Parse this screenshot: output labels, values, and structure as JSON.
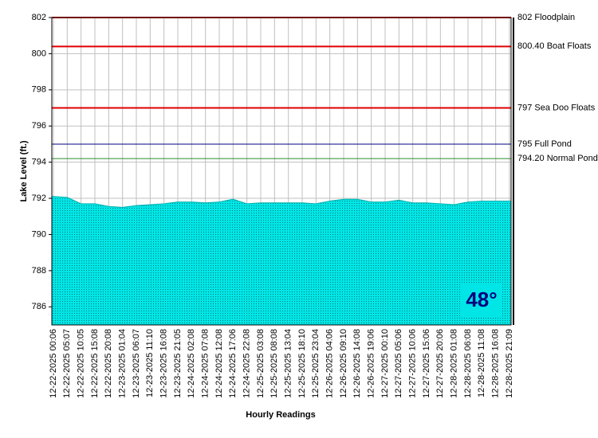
{
  "chart_data": {
    "type": "area",
    "y_label": "Lake Level (ft.)",
    "x_label": "Hourly Readings",
    "categories": [
      "12-22-2025 00:06",
      "12-22-2025 05:07",
      "12-22-2025 10:05",
      "12-22-2025 15:08",
      "12-22-2025 20:08",
      "12-23-2025 01:04",
      "12-23-2025 06:07",
      "12-23-2025 11:10",
      "12-23-2025 16:08",
      "12-23-2025 21:05",
      "12-24-2025 02:08",
      "12-24-2025 07:08",
      "12-24-2025 12:08",
      "12-24-2025 17:06",
      "12-24-2025 22:08",
      "12-25-2025 03:08",
      "12-25-2025 08:08",
      "12-25-2025 13:04",
      "12-25-2025 18:10",
      "12-25-2025 23:04",
      "12-26-2025 04:06",
      "12-26-2025 09:10",
      "12-26-2025 14:08",
      "12-26-2025 19:06",
      "12-27-2025 00:10",
      "12-27-2025 05:06",
      "12-27-2025 10:06",
      "12-27-2025 15:06",
      "12-27-2025 20:06",
      "12-28-2025 01:08",
      "12-28-2025 06:08",
      "12-28-2025 11:08",
      "12-28-2025 16:08",
      "12-28-2025 21:09"
    ],
    "values": [
      792.1,
      792.05,
      791.7,
      791.7,
      791.55,
      791.5,
      791.6,
      791.65,
      791.7,
      791.8,
      791.8,
      791.75,
      791.8,
      791.95,
      791.7,
      791.75,
      791.75,
      791.75,
      791.75,
      791.7,
      791.85,
      791.95,
      791.95,
      791.8,
      791.8,
      791.9,
      791.75,
      791.75,
      791.7,
      791.65,
      791.8,
      791.85,
      791.85,
      791.85
    ],
    "color": "#00e6e6",
    "ylim": [
      785,
      802
    ],
    "yticks": [
      786,
      788,
      790,
      792,
      794,
      796,
      798,
      800,
      802
    ],
    "grid": true,
    "reference_lines": [
      {
        "value": 802,
        "label": "802 Floodplain",
        "color": "#e00000"
      },
      {
        "value": 800.4,
        "label": "800.40 Boat Floats",
        "color": "#e00000"
      },
      {
        "value": 797,
        "label": "797 Sea Doo Floats",
        "color": "#e00000"
      },
      {
        "value": 795,
        "label": "795 Full Pond",
        "color": "#000080"
      },
      {
        "value": 794.2,
        "label": "794.20 Normal Pond",
        "color": "#2e8b2e"
      }
    ],
    "badge": "48°"
  }
}
